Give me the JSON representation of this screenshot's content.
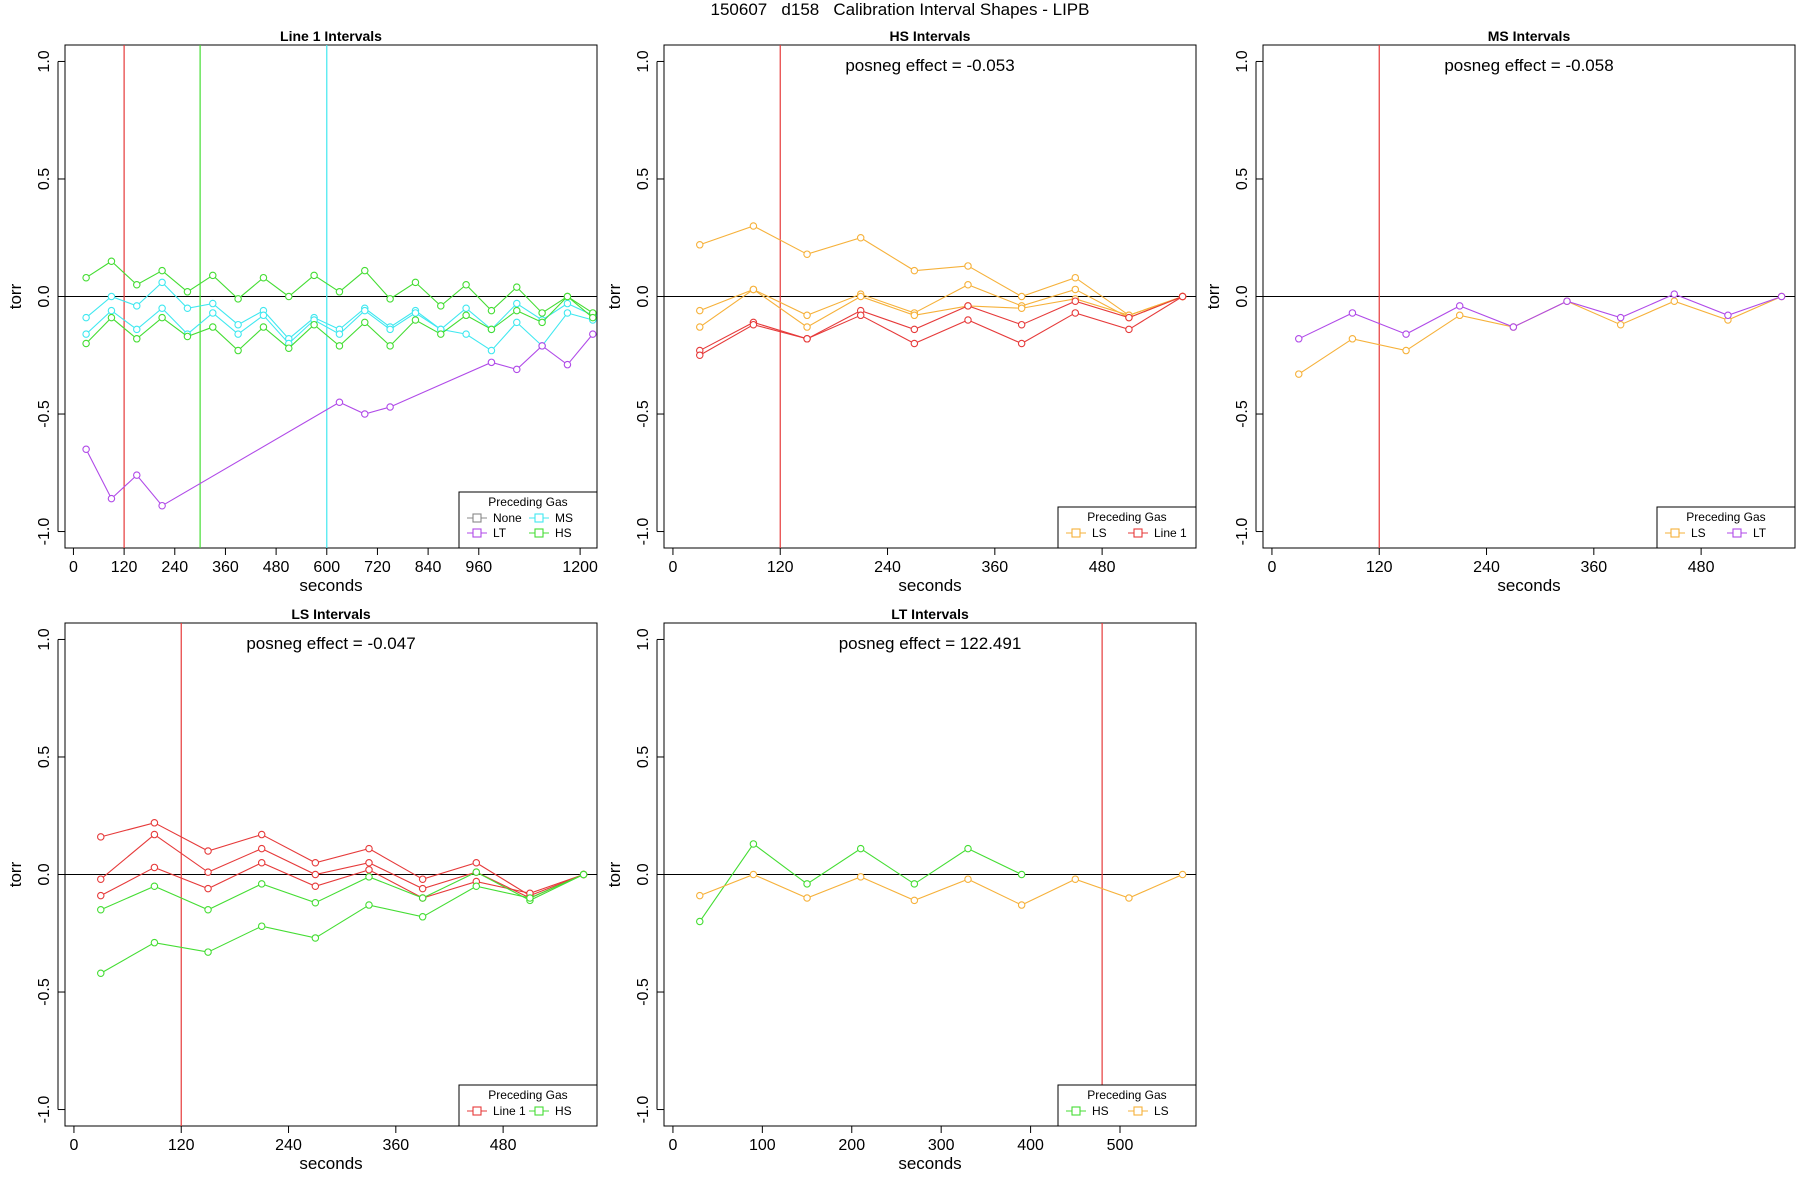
{
  "figure": {
    "title": "150607   d158   Calibration Interval Shapes - LIPB",
    "colors": {
      "None": "#888888",
      "LT": "#b04ae8",
      "MS": "#40e8f0",
      "HS": "#44dd33",
      "LS": "#f6b13a",
      "Line 1": "#e63a3a",
      "axis": "#000000"
    }
  },
  "chart_data": [
    {
      "type": "line",
      "title": "Line 1 Intervals",
      "xlabel": "seconds",
      "ylabel": "torr",
      "annotation": "",
      "xlim": [
        -20,
        1240
      ],
      "ylim": [
        -1.07,
        1.07
      ],
      "xticks": [
        0,
        120,
        240,
        360,
        480,
        600,
        720,
        840,
        960,
        1200
      ],
      "xtick_labels": [
        "0",
        "120",
        "240",
        "360",
        "480",
        "600",
        "720",
        "840",
        "960",
        "1200"
      ],
      "yticks": [
        1.0,
        0.5,
        0.0,
        -0.5,
        -1.0
      ],
      "ytick_labels": [
        "1.0",
        "0.5",
        "0.0",
        "-0.5",
        "-1.0"
      ],
      "hline": 0,
      "vlines": [
        {
          "x": 120,
          "color": "Line 1"
        },
        {
          "x": 300,
          "color": "HS"
        },
        {
          "x": 600,
          "color": "MS"
        }
      ],
      "legend": {
        "title": "Preceding Gas",
        "position": "bottom-right",
        "columns": 2,
        "entries": [
          "None",
          "MS",
          "LT",
          "HS"
        ]
      },
      "series": [
        {
          "name": "MS",
          "color": "MS",
          "x": [
            30,
            90,
            150,
            210,
            270,
            330,
            390,
            450,
            510,
            570,
            630,
            690,
            750,
            810,
            870,
            930,
            990,
            1050,
            1110,
            1170,
            1230
          ],
          "y": [
            -0.09,
            0.0,
            -0.04,
            0.06,
            -0.05,
            -0.03,
            -0.12,
            -0.06,
            -0.18,
            -0.09,
            -0.14,
            -0.05,
            -0.13,
            -0.06,
            -0.14,
            -0.16,
            -0.23,
            -0.11,
            -0.21,
            -0.07,
            -0.1
          ]
        },
        {
          "name": "MS",
          "color": "MS",
          "x": [
            30,
            90,
            150,
            210,
            270,
            330,
            390,
            450,
            510,
            570,
            630,
            690,
            750,
            810,
            870,
            930,
            990,
            1050,
            1110,
            1170,
            1230
          ],
          "y": [
            -0.16,
            -0.06,
            -0.14,
            -0.05,
            -0.16,
            -0.07,
            -0.16,
            -0.08,
            -0.2,
            -0.1,
            -0.16,
            -0.06,
            -0.14,
            -0.07,
            -0.14,
            -0.05,
            -0.14,
            -0.03,
            -0.1,
            -0.03,
            -0.08
          ]
        },
        {
          "name": "HS",
          "color": "HS",
          "x": [
            30,
            90,
            150,
            210,
            270,
            330,
            390,
            450,
            510,
            570,
            630,
            690,
            750,
            810,
            870,
            930,
            990,
            1050,
            1110,
            1170,
            1230
          ],
          "y": [
            0.08,
            0.15,
            0.05,
            0.11,
            0.02,
            0.09,
            -0.01,
            0.08,
            0.0,
            0.09,
            0.02,
            0.11,
            -0.01,
            0.06,
            -0.04,
            0.05,
            -0.06,
            0.04,
            -0.07,
            0.0,
            -0.07
          ]
        },
        {
          "name": "HS",
          "color": "HS",
          "x": [
            30,
            90,
            150,
            210,
            270,
            330,
            390,
            450,
            510,
            570,
            630,
            690,
            750,
            810,
            870,
            930,
            990,
            1050,
            1110,
            1170,
            1230
          ],
          "y": [
            -0.2,
            -0.09,
            -0.18,
            -0.09,
            -0.17,
            -0.13,
            -0.23,
            -0.13,
            -0.22,
            -0.12,
            -0.21,
            -0.11,
            -0.21,
            -0.1,
            -0.16,
            -0.08,
            -0.14,
            -0.06,
            -0.11,
            0.0,
            -0.09
          ]
        },
        {
          "name": "LT",
          "color": "LT",
          "x": [
            30,
            90,
            150,
            210,
            630,
            690,
            750,
            990,
            1050,
            1110,
            1170,
            1230
          ],
          "y": [
            -0.65,
            -0.86,
            -0.76,
            -0.89,
            -0.45,
            -0.5,
            -0.47,
            -0.28,
            -0.31,
            -0.21,
            -0.29,
            -0.16
          ]
        }
      ]
    },
    {
      "type": "line",
      "title": "HS Intervals",
      "xlabel": "seconds",
      "ylabel": "torr",
      "annotation": "posneg effect = -0.053",
      "xlim": [
        -10,
        585
      ],
      "ylim": [
        -1.07,
        1.07
      ],
      "xticks": [
        0,
        120,
        240,
        360,
        480
      ],
      "xtick_labels": [
        "0",
        "120",
        "240",
        "360",
        "480"
      ],
      "yticks": [
        1.0,
        0.5,
        0.0,
        -0.5,
        -1.0
      ],
      "ytick_labels": [
        "1.0",
        "0.5",
        "0.0",
        "-0.5",
        "-1.0"
      ],
      "hline": 0,
      "vlines": [
        {
          "x": 120,
          "color": "Line 1"
        }
      ],
      "legend": {
        "title": "Preceding Gas",
        "position": "bottom-right",
        "columns": 2,
        "entries": [
          "LS",
          "Line 1"
        ]
      },
      "series": [
        {
          "name": "LS",
          "color": "LS",
          "x": [
            30,
            90,
            150,
            210,
            270,
            330,
            390,
            450,
            510,
            570
          ],
          "y": [
            0.22,
            0.3,
            0.18,
            0.25,
            0.11,
            0.13,
            0.0,
            0.08,
            -0.08,
            0.0
          ]
        },
        {
          "name": "LS",
          "color": "LS",
          "x": [
            30,
            90,
            150,
            210,
            270,
            330,
            390,
            450,
            510,
            570
          ],
          "y": [
            -0.06,
            0.03,
            -0.08,
            0.01,
            -0.07,
            0.05,
            -0.04,
            0.03,
            -0.09,
            0.0
          ]
        },
        {
          "name": "LS",
          "color": "LS",
          "x": [
            30,
            90,
            150,
            210,
            270,
            330,
            390,
            450,
            510,
            570
          ],
          "y": [
            -0.13,
            0.03,
            -0.13,
            0.0,
            -0.08,
            -0.04,
            -0.05,
            -0.01,
            -0.08,
            0.0
          ]
        },
        {
          "name": "Line 1",
          "color": "Line 1",
          "x": [
            30,
            90,
            150,
            210,
            270,
            330,
            390,
            450,
            510,
            570
          ],
          "y": [
            -0.23,
            -0.11,
            -0.18,
            -0.06,
            -0.14,
            -0.04,
            -0.12,
            -0.02,
            -0.09,
            0.0
          ]
        },
        {
          "name": "Line 1",
          "color": "Line 1",
          "x": [
            30,
            90,
            150,
            210,
            270,
            330,
            390,
            450,
            510,
            570
          ],
          "y": [
            -0.25,
            -0.12,
            -0.18,
            -0.08,
            -0.2,
            -0.1,
            -0.2,
            -0.07,
            -0.14,
            0.0
          ]
        }
      ]
    },
    {
      "type": "line",
      "title": "MS Intervals",
      "xlabel": "seconds",
      "ylabel": "torr",
      "annotation": "posneg effect = -0.058",
      "xlim": [
        -10,
        585
      ],
      "ylim": [
        -1.07,
        1.07
      ],
      "xticks": [
        0,
        120,
        240,
        360,
        480
      ],
      "xtick_labels": [
        "0",
        "120",
        "240",
        "360",
        "480"
      ],
      "yticks": [
        1.0,
        0.5,
        0.0,
        -0.5,
        -1.0
      ],
      "ytick_labels": [
        "1.0",
        "0.5",
        "0.0",
        "-0.5",
        "-1.0"
      ],
      "hline": 0,
      "vlines": [
        {
          "x": 120,
          "color": "Line 1"
        }
      ],
      "legend": {
        "title": "Preceding Gas",
        "position": "bottom-right",
        "columns": 2,
        "entries": [
          "LS",
          "LT"
        ]
      },
      "series": [
        {
          "name": "LS",
          "color": "LS",
          "x": [
            30,
            90,
            150,
            210,
            270,
            330,
            390,
            450,
            510,
            570
          ],
          "y": [
            -0.33,
            -0.18,
            -0.23,
            -0.08,
            -0.13,
            -0.02,
            -0.12,
            -0.02,
            -0.1,
            0.0
          ]
        },
        {
          "name": "LT",
          "color": "LT",
          "x": [
            30,
            90,
            150,
            210,
            270,
            330,
            390,
            450,
            510,
            570
          ],
          "y": [
            -0.18,
            -0.07,
            -0.16,
            -0.04,
            -0.13,
            -0.02,
            -0.09,
            0.01,
            -0.08,
            0.0
          ]
        }
      ]
    },
    {
      "type": "line",
      "title": "LS Intervals",
      "xlabel": "seconds",
      "ylabel": "torr",
      "annotation": "posneg effect = -0.047",
      "xlim": [
        -10,
        585
      ],
      "ylim": [
        -1.07,
        1.07
      ],
      "xticks": [
        0,
        120,
        240,
        360,
        480
      ],
      "xtick_labels": [
        "0",
        "120",
        "240",
        "360",
        "480"
      ],
      "yticks": [
        1.0,
        0.5,
        0.0,
        -0.5,
        -1.0
      ],
      "ytick_labels": [
        "1.0",
        "0.5",
        "0.0",
        "-0.5",
        "-1.0"
      ],
      "hline": 0,
      "vlines": [
        {
          "x": 120,
          "color": "Line 1"
        }
      ],
      "legend": {
        "title": "Preceding Gas",
        "position": "bottom-right",
        "columns": 2,
        "entries": [
          "Line 1",
          "HS"
        ]
      },
      "series": [
        {
          "name": "Line 1",
          "color": "Line 1",
          "x": [
            30,
            90,
            150,
            210,
            270,
            330,
            390,
            450,
            510,
            570
          ],
          "y": [
            0.16,
            0.22,
            0.1,
            0.17,
            0.05,
            0.11,
            -0.02,
            0.05,
            -0.09,
            0.0
          ]
        },
        {
          "name": "Line 1",
          "color": "Line 1",
          "x": [
            30,
            90,
            150,
            210,
            270,
            330,
            390,
            450,
            510,
            570
          ],
          "y": [
            -0.02,
            0.17,
            0.01,
            0.11,
            0.0,
            0.05,
            -0.06,
            0.01,
            -0.1,
            0.0
          ]
        },
        {
          "name": "Line 1",
          "color": "Line 1",
          "x": [
            30,
            90,
            150,
            210,
            270,
            330,
            390,
            450,
            510,
            570
          ],
          "y": [
            -0.09,
            0.03,
            -0.06,
            0.05,
            -0.05,
            0.02,
            -0.1,
            -0.03,
            -0.08,
            0.0
          ]
        },
        {
          "name": "HS",
          "color": "HS",
          "x": [
            30,
            90,
            150,
            210,
            270,
            330,
            390,
            450,
            510,
            570
          ],
          "y": [
            -0.15,
            -0.05,
            -0.15,
            -0.04,
            -0.12,
            -0.01,
            -0.1,
            0.01,
            -0.11,
            0.0
          ]
        },
        {
          "name": "HS",
          "color": "HS",
          "x": [
            30,
            90,
            150,
            210,
            270,
            330,
            390,
            450,
            510,
            570
          ],
          "y": [
            -0.42,
            -0.29,
            -0.33,
            -0.22,
            -0.27,
            -0.13,
            -0.18,
            -0.05,
            -0.1,
            0.0
          ]
        }
      ]
    },
    {
      "type": "line",
      "title": "LT Intervals",
      "xlabel": "seconds",
      "ylabel": "torr",
      "annotation": "posneg effect = 122.491",
      "xlim": [
        -10,
        585
      ],
      "ylim": [
        -1.07,
        1.07
      ],
      "xticks": [
        0,
        100,
        200,
        300,
        400,
        500
      ],
      "xtick_labels": [
        "0",
        "100",
        "200",
        "300",
        "400",
        "500"
      ],
      "yticks": [
        1.0,
        0.5,
        0.0,
        -0.5,
        -1.0
      ],
      "ytick_labels": [
        "1.0",
        "0.5",
        "0.0",
        "-0.5",
        "-1.0"
      ],
      "hline": 0,
      "vlines": [
        {
          "x": 480,
          "color": "Line 1"
        }
      ],
      "legend": {
        "title": "Preceding Gas",
        "position": "bottom-right",
        "columns": 2,
        "entries": [
          "HS",
          "LS"
        ]
      },
      "series": [
        {
          "name": "HS",
          "color": "HS",
          "x": [
            30,
            90,
            150,
            210,
            270,
            330,
            390
          ],
          "y": [
            -0.2,
            0.13,
            -0.04,
            0.11,
            -0.04,
            0.11,
            0.0
          ]
        },
        {
          "name": "LS",
          "color": "LS",
          "x": [
            30,
            90,
            150,
            210,
            270,
            330,
            390,
            450,
            510,
            570
          ],
          "y": [
            -0.09,
            0.0,
            -0.1,
            -0.01,
            -0.11,
            -0.02,
            -0.13,
            -0.02,
            -0.1,
            0.0
          ]
        }
      ]
    }
  ]
}
